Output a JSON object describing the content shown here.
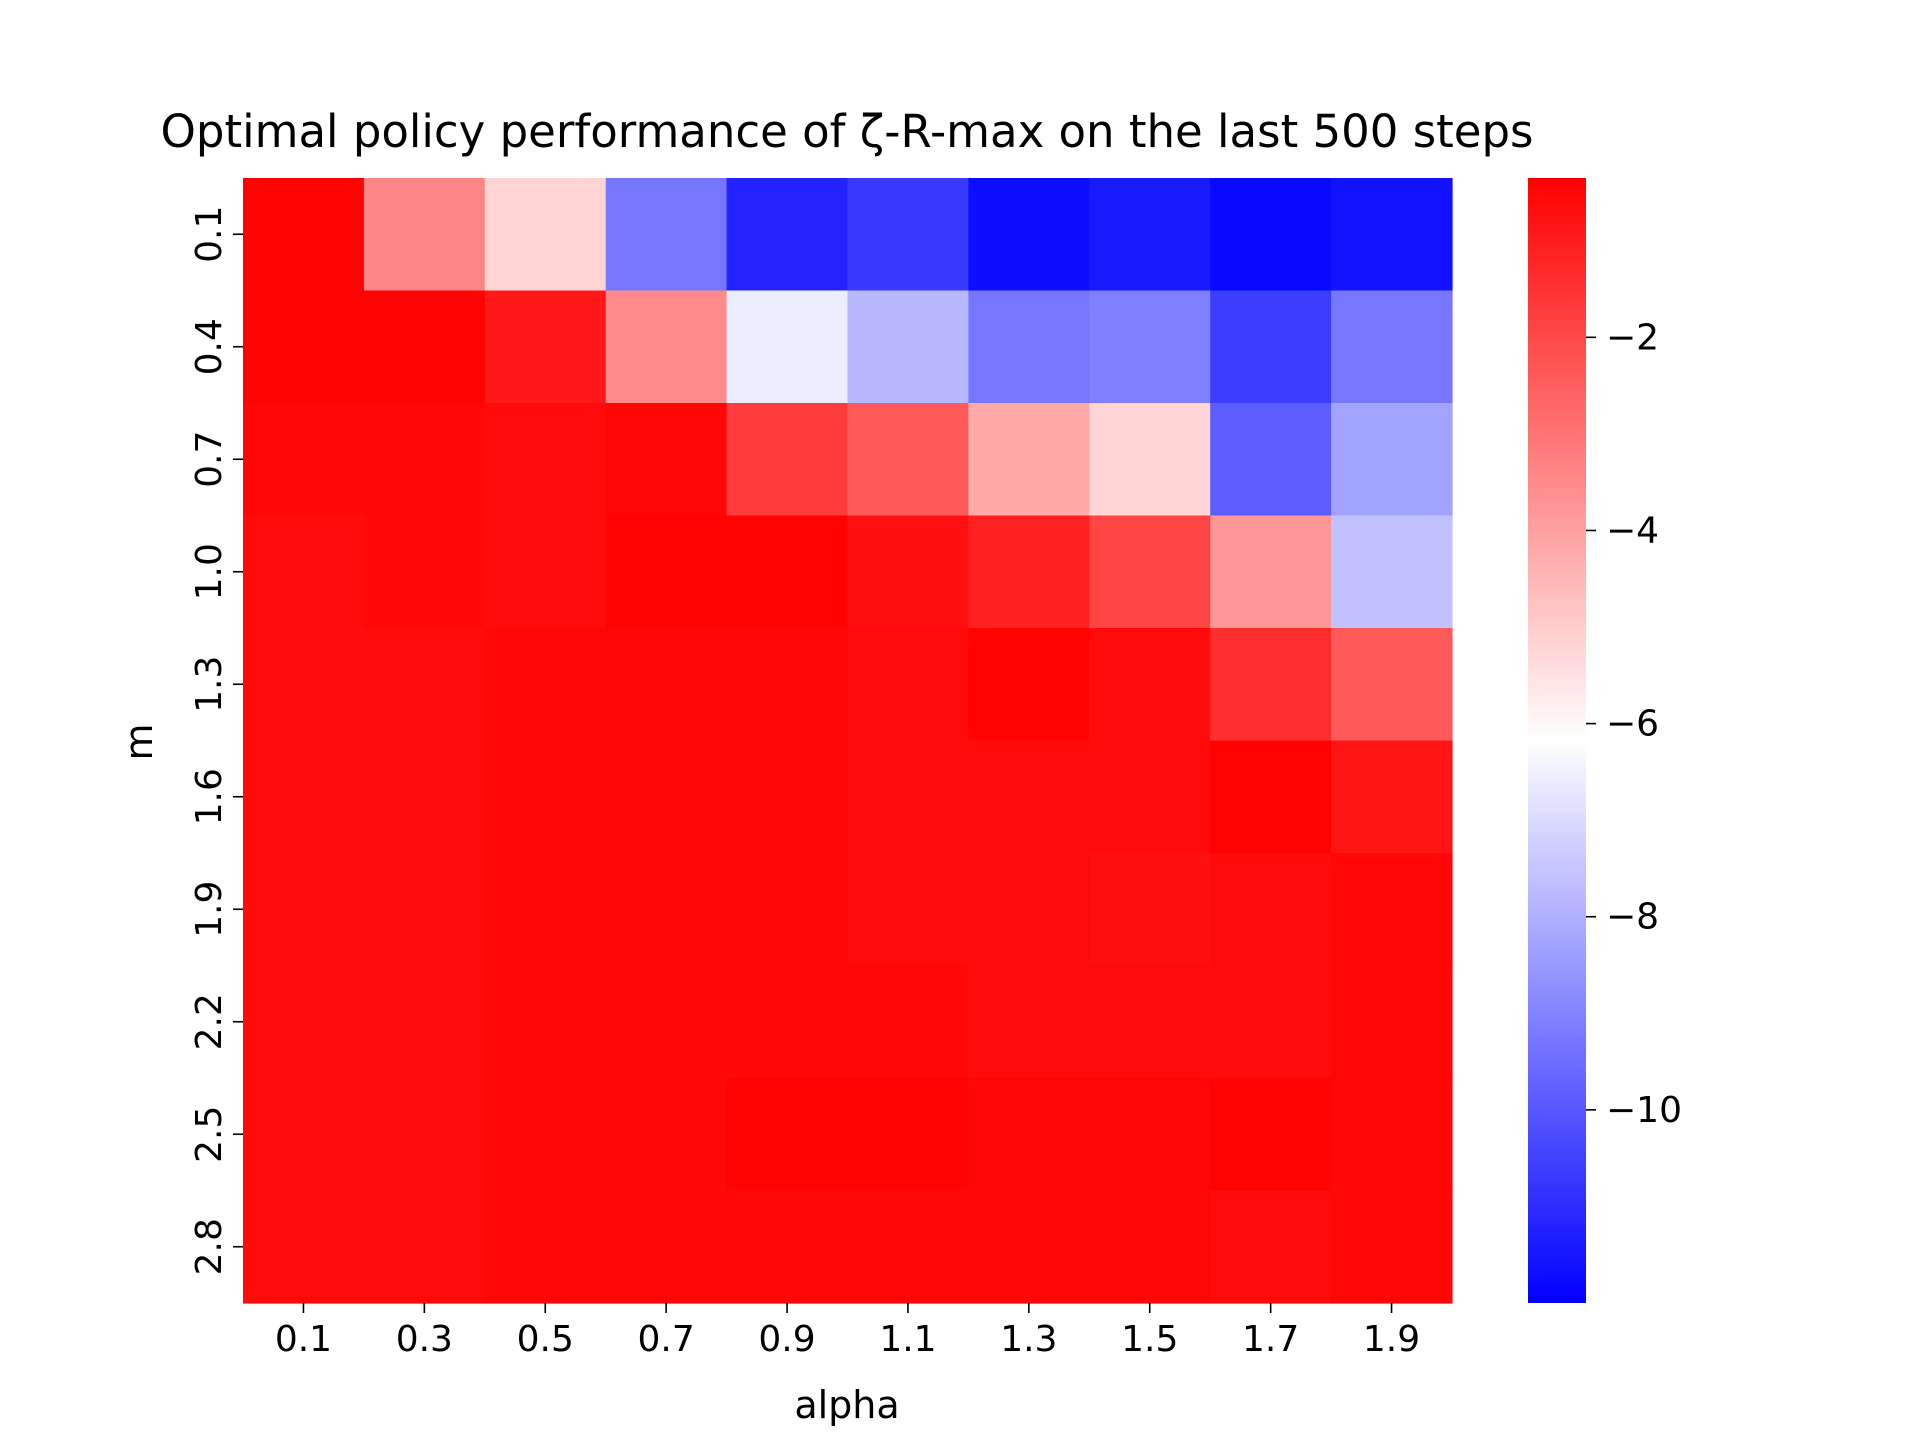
{
  "chart_data": {
    "type": "heatmap",
    "title": "Optimal policy performance of ζ-R-max on the last 500 steps",
    "xlabel": "alpha",
    "ylabel": "m",
    "x_categories": [
      "0.1",
      "0.3",
      "0.5",
      "0.7",
      "0.9",
      "1.1",
      "1.3",
      "1.5",
      "1.7",
      "1.9"
    ],
    "y_categories": [
      "0.1",
      "0.4",
      "0.7",
      "1.0",
      "1.3",
      "1.6",
      "1.9",
      "2.2",
      "2.5",
      "2.8"
    ],
    "values": [
      [
        -0.4,
        -3.4,
        -5.2,
        -9.3,
        -11.2,
        -10.7,
        -11.7,
        -11.4,
        -11.8,
        -11.6
      ],
      [
        -0.4,
        -0.4,
        -0.9,
        -3.5,
        -6.6,
        -7.8,
        -9.3,
        -9.1,
        -10.6,
        -9.3
      ],
      [
        -0.5,
        -0.5,
        -0.6,
        -0.5,
        -1.7,
        -2.4,
        -4.2,
        -5.2,
        -9.9,
        -8.3
      ],
      [
        -0.6,
        -0.5,
        -0.6,
        -0.4,
        -0.4,
        -0.7,
        -1.1,
        -1.9,
        -3.8,
        -7.6
      ],
      [
        -0.6,
        -0.6,
        -0.5,
        -0.5,
        -0.5,
        -0.6,
        -0.4,
        -0.6,
        -1.4,
        -2.4
      ],
      [
        -0.6,
        -0.6,
        -0.5,
        -0.5,
        -0.5,
        -0.6,
        -0.6,
        -0.6,
        -0.4,
        -0.8
      ],
      [
        -0.6,
        -0.6,
        -0.5,
        -0.5,
        -0.5,
        -0.6,
        -0.6,
        -0.7,
        -0.6,
        -0.5
      ],
      [
        -0.6,
        -0.6,
        -0.5,
        -0.5,
        -0.5,
        -0.5,
        -0.6,
        -0.6,
        -0.6,
        -0.5
      ],
      [
        -0.6,
        -0.6,
        -0.5,
        -0.5,
        -0.4,
        -0.4,
        -0.5,
        -0.5,
        -0.4,
        -0.5
      ],
      [
        -0.6,
        -0.6,
        -0.5,
        -0.5,
        -0.5,
        -0.5,
        -0.5,
        -0.5,
        -0.6,
        -0.5
      ]
    ],
    "colorbar": {
      "vmin": -12.0,
      "vmax": -0.35,
      "ticks": [
        -2,
        -4,
        -6,
        -8,
        -10
      ],
      "tick_labels": [
        "−2",
        "−4",
        "−6",
        "−8",
        "−10"
      ],
      "colormap": "bwr",
      "low_color": "#0000ff",
      "mid_color": "#ffffff",
      "high_color": "#ff0000"
    },
    "grid": false,
    "legend": "none"
  }
}
